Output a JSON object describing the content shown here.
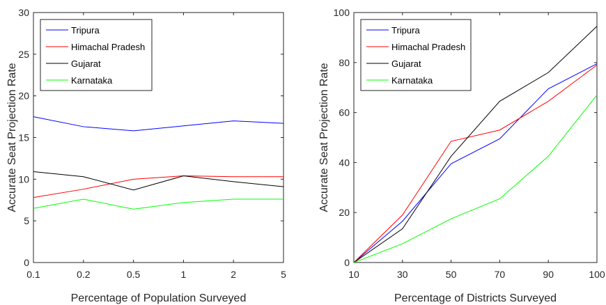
{
  "chart_data": [
    {
      "type": "line",
      "categories": [
        "0.1",
        "0.2",
        "0.5",
        "1",
        "2",
        "5"
      ],
      "xlabel": "Percentage of Population Surveyed",
      "ylabel": "Accurate Seat Projection Rate",
      "ylim": [
        0,
        30
      ],
      "yticks": [
        "0",
        "5",
        "10",
        "15",
        "20",
        "25",
        "30"
      ],
      "grid": false,
      "legend": "top-left",
      "series": [
        {
          "name": "Tripura",
          "color": "#0000ff",
          "values": [
            17.5,
            16.3,
            15.8,
            16.4,
            17.0,
            16.7
          ]
        },
        {
          "name": "Himachal Pradesh",
          "color": "#ff0000",
          "values": [
            7.8,
            8.8,
            10.0,
            10.4,
            10.3,
            10.3
          ]
        },
        {
          "name": "Gujarat",
          "color": "#000000",
          "values": [
            10.9,
            10.3,
            8.7,
            10.4,
            9.7,
            9.1
          ]
        },
        {
          "name": "Karnataka",
          "color": "#00ff00",
          "values": [
            6.5,
            7.6,
            6.4,
            7.2,
            7.6,
            7.6
          ]
        }
      ]
    },
    {
      "type": "line",
      "categories": [
        "10",
        "30",
        "50",
        "70",
        "90",
        "100"
      ],
      "xlabel": "Percentage of Districts Surveyed",
      "ylabel": "Accurate Seat Projection Rate",
      "ylim": [
        0,
        100
      ],
      "yticks": [
        "0",
        "20",
        "40",
        "60",
        "80",
        "100"
      ],
      "grid": false,
      "legend": "top-left",
      "series": [
        {
          "name": "Tripura",
          "color": "#0000ff",
          "values": [
            0,
            16.5,
            39.5,
            49.5,
            69.5,
            79.5
          ]
        },
        {
          "name": "Himachal Pradesh",
          "color": "#ff0000",
          "values": [
            0,
            19,
            48.5,
            53,
            64.5,
            79
          ]
        },
        {
          "name": "Gujarat",
          "color": "#000000",
          "values": [
            0,
            13.5,
            42.5,
            64.5,
            76,
            94.5
          ]
        },
        {
          "name": "Karnataka",
          "color": "#00ff00",
          "values": [
            0,
            7.5,
            17.5,
            25.5,
            42.5,
            67
          ]
        }
      ]
    }
  ]
}
